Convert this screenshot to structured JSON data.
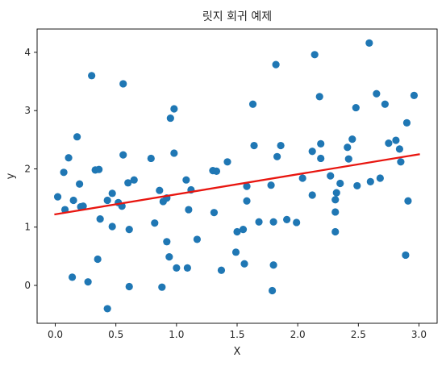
{
  "chart_data": {
    "type": "scatter",
    "title": "릿지 회귀 예제",
    "xlabel": "X",
    "ylabel": "y",
    "xlim": [
      -0.15,
      3.15
    ],
    "ylim": [
      -0.65,
      4.4
    ],
    "xticks": [
      "0.0",
      "0.5",
      "1.0",
      "1.5",
      "2.0",
      "2.5",
      "3.0"
    ],
    "yticks": [
      "0",
      "1",
      "2",
      "3",
      "4"
    ],
    "grid": false,
    "colors": {
      "points": "#1f77b4",
      "line": "#e8150f"
    },
    "series": [
      {
        "values": [
          [
            0.02,
            1.52
          ],
          [
            0.07,
            1.94
          ],
          [
            0.08,
            1.3
          ],
          [
            0.11,
            2.19
          ],
          [
            0.14,
            0.14
          ],
          [
            0.15,
            1.46
          ],
          [
            0.18,
            2.55
          ],
          [
            0.2,
            1.74
          ],
          [
            0.21,
            1.35
          ],
          [
            0.23,
            1.36
          ],
          [
            0.27,
            0.06
          ],
          [
            0.3,
            3.6
          ],
          [
            0.33,
            1.98
          ],
          [
            0.35,
            0.45
          ],
          [
            0.36,
            1.99
          ],
          [
            0.37,
            1.14
          ],
          [
            0.43,
            1.46
          ],
          [
            0.43,
            -0.4
          ],
          [
            0.47,
            1.58
          ],
          [
            0.47,
            1.01
          ],
          [
            0.52,
            1.42
          ],
          [
            0.55,
            1.36
          ],
          [
            0.56,
            3.46
          ],
          [
            0.56,
            2.24
          ],
          [
            0.6,
            1.76
          ],
          [
            0.61,
            0.96
          ],
          [
            0.61,
            -0.02
          ],
          [
            0.65,
            1.81
          ],
          [
            0.79,
            2.18
          ],
          [
            0.82,
            1.07
          ],
          [
            0.86,
            1.63
          ],
          [
            0.88,
            -0.03
          ],
          [
            0.89,
            1.44
          ],
          [
            0.92,
            1.5
          ],
          [
            0.92,
            0.75
          ],
          [
            0.94,
            0.49
          ],
          [
            0.95,
            2.87
          ],
          [
            0.98,
            3.03
          ],
          [
            0.98,
            2.27
          ],
          [
            1.0,
            0.3
          ],
          [
            1.08,
            1.81
          ],
          [
            1.09,
            0.3
          ],
          [
            1.1,
            1.3
          ],
          [
            1.12,
            1.64
          ],
          [
            1.17,
            0.79
          ],
          [
            1.3,
            1.97
          ],
          [
            1.31,
            1.25
          ],
          [
            1.33,
            1.96
          ],
          [
            1.37,
            0.26
          ],
          [
            1.42,
            2.12
          ],
          [
            1.49,
            0.57
          ],
          [
            1.5,
            0.92
          ],
          [
            1.55,
            0.96
          ],
          [
            1.56,
            0.37
          ],
          [
            1.58,
            1.7
          ],
          [
            1.58,
            1.45
          ],
          [
            1.63,
            3.11
          ],
          [
            1.64,
            2.4
          ],
          [
            1.68,
            1.09
          ],
          [
            1.78,
            1.72
          ],
          [
            1.79,
            -0.09
          ],
          [
            1.8,
            1.09
          ],
          [
            1.8,
            0.35
          ],
          [
            1.82,
            3.79
          ],
          [
            1.83,
            2.21
          ],
          [
            1.86,
            2.4
          ],
          [
            1.91,
            1.13
          ],
          [
            1.99,
            1.08
          ],
          [
            2.04,
            1.84
          ],
          [
            2.12,
            1.55
          ],
          [
            2.12,
            2.3
          ],
          [
            2.14,
            3.96
          ],
          [
            2.18,
            3.24
          ],
          [
            2.19,
            2.18
          ],
          [
            2.19,
            2.43
          ],
          [
            2.27,
            1.88
          ],
          [
            2.31,
            1.47
          ],
          [
            2.31,
            1.26
          ],
          [
            2.31,
            0.92
          ],
          [
            2.32,
            1.59
          ],
          [
            2.35,
            1.75
          ],
          [
            2.41,
            2.37
          ],
          [
            2.42,
            2.17
          ],
          [
            2.45,
            2.51
          ],
          [
            2.48,
            3.05
          ],
          [
            2.49,
            1.71
          ],
          [
            2.59,
            4.16
          ],
          [
            2.6,
            1.78
          ],
          [
            2.65,
            3.29
          ],
          [
            2.68,
            1.84
          ],
          [
            2.72,
            3.11
          ],
          [
            2.75,
            2.44
          ],
          [
            2.81,
            2.49
          ],
          [
            2.84,
            2.34
          ],
          [
            2.85,
            2.12
          ],
          [
            2.89,
            0.52
          ],
          [
            2.9,
            2.79
          ],
          [
            2.91,
            1.45
          ],
          [
            2.96,
            3.26
          ]
        ]
      }
    ],
    "fit_line": {
      "x": [
        0.0,
        3.0
      ],
      "y": [
        1.22,
        2.25
      ]
    }
  }
}
